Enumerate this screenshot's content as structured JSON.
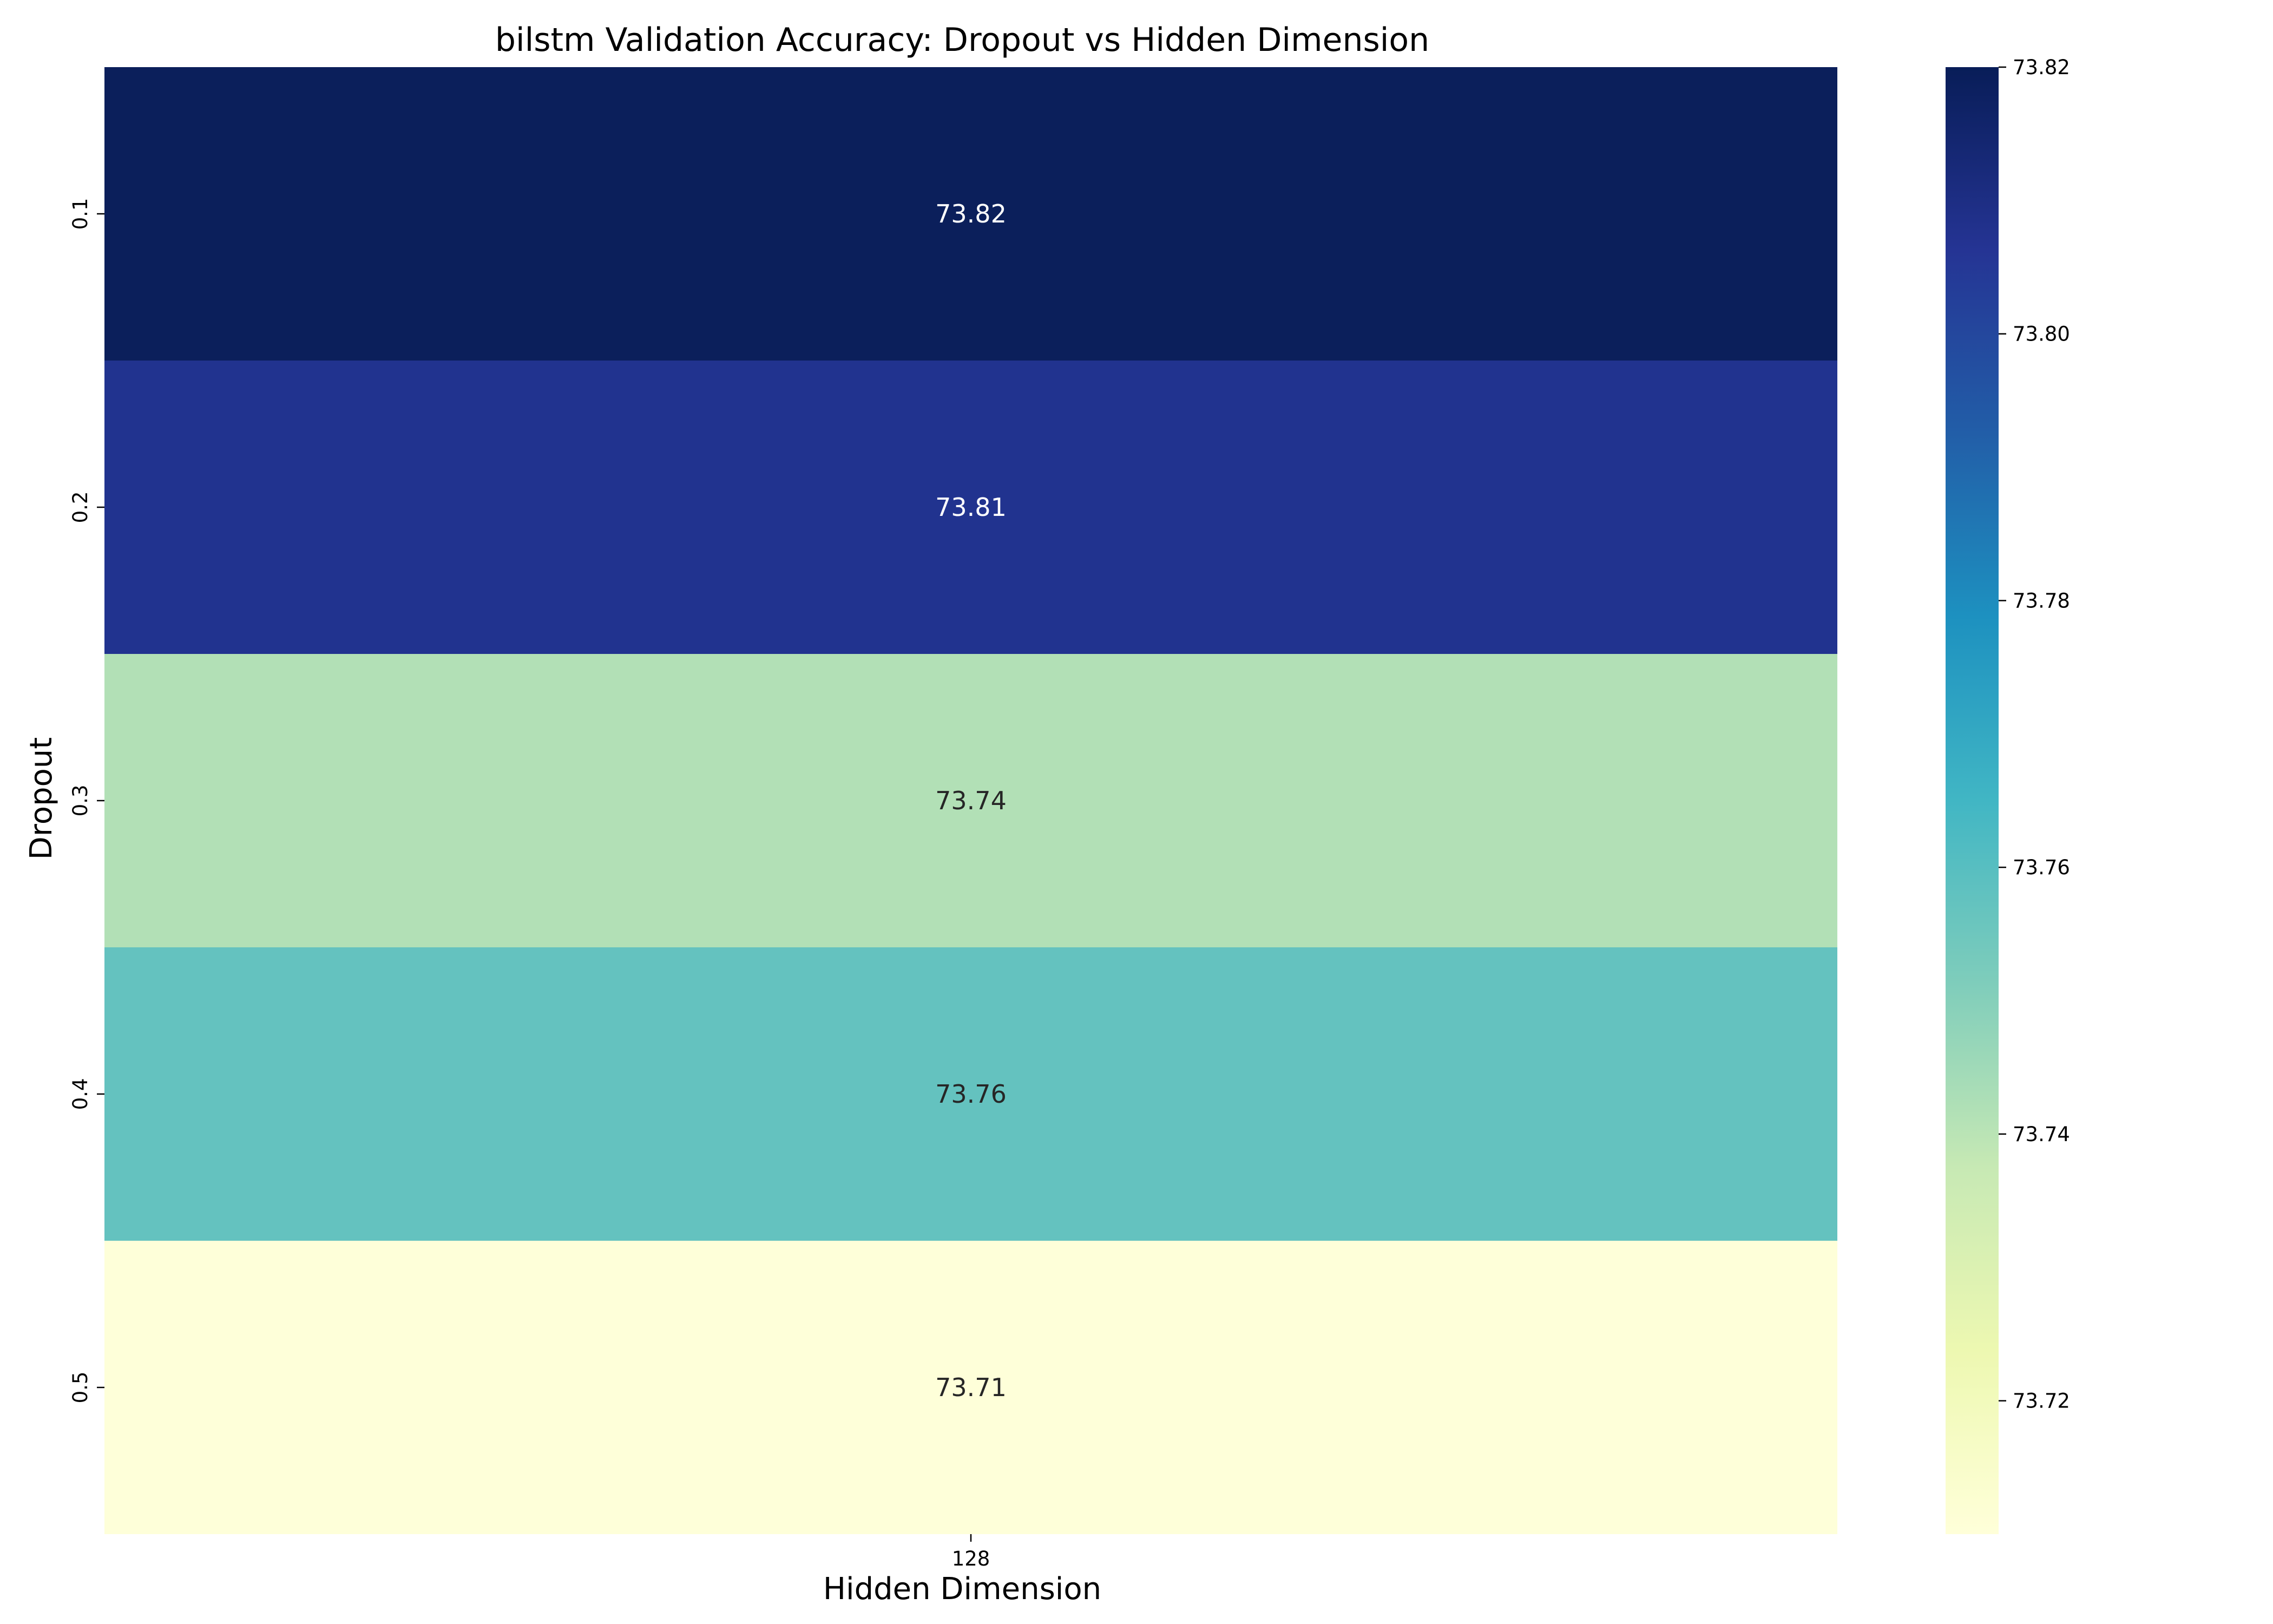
{
  "chart_data": {
    "type": "heatmap",
    "title": "bilstm Validation Accuracy: Dropout vs Hidden Dimension",
    "xlabel": "Hidden Dimension",
    "ylabel": "Dropout",
    "x_categories": [
      "128"
    ],
    "y_categories": [
      "0.1",
      "0.2",
      "0.3",
      "0.4",
      "0.5"
    ],
    "values": [
      [
        73.82
      ],
      [
        73.81
      ],
      [
        73.74
      ],
      [
        73.76
      ],
      [
        73.71
      ]
    ],
    "annotations": [
      "73.82",
      "73.81",
      "73.74",
      "73.76",
      "73.71"
    ],
    "colormap": "YlGnBu",
    "colorbar": {
      "vmin": 73.71,
      "vmax": 73.82,
      "ticks": [
        73.72,
        73.74,
        73.76,
        73.78,
        73.8,
        73.82
      ],
      "tick_labels": [
        "73.72",
        "73.74",
        "73.76",
        "73.78",
        "73.80",
        "73.82"
      ]
    },
    "cell_colors": [
      "#0b1f5b",
      "#21338f",
      "#b2e0b6",
      "#64c2bf",
      "#feffd9"
    ],
    "annotation_colors": [
      "#ffffff",
      "#ffffff",
      "#262626",
      "#262626",
      "#262626"
    ]
  }
}
